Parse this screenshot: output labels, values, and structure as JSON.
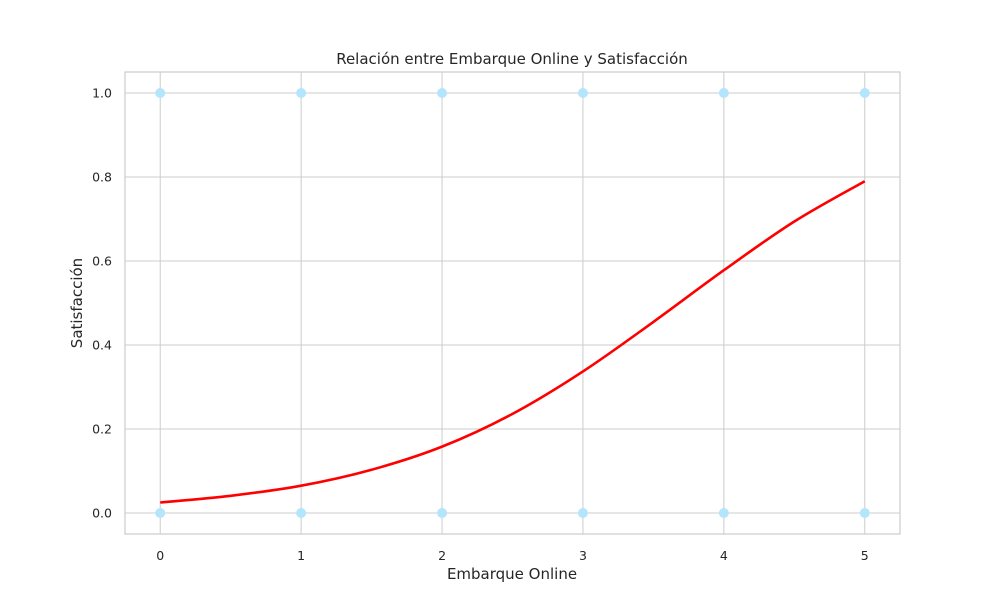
{
  "chart_data": {
    "type": "scatter",
    "title": "Relación entre Embarque Online y Satisfacción",
    "xlabel": "Embarque Online",
    "ylabel": "Satisfacción",
    "xlim": [
      -0.25,
      5.25
    ],
    "ylim": [
      -0.05,
      1.05
    ],
    "xticks": [
      "0",
      "1",
      "2",
      "3",
      "4",
      "5"
    ],
    "yticks": [
      "0.0",
      "0.2",
      "0.4",
      "0.6",
      "0.8",
      "1.0"
    ],
    "grid": true,
    "points": [
      {
        "x": 0,
        "y": 1
      },
      {
        "x": 1,
        "y": 1
      },
      {
        "x": 2,
        "y": 1
      },
      {
        "x": 3,
        "y": 1
      },
      {
        "x": 4,
        "y": 1
      },
      {
        "x": 5,
        "y": 1
      },
      {
        "x": 0,
        "y": 0
      },
      {
        "x": 1,
        "y": 0
      },
      {
        "x": 2,
        "y": 0
      },
      {
        "x": 3,
        "y": 0
      },
      {
        "x": 4,
        "y": 0
      },
      {
        "x": 5,
        "y": 0
      }
    ],
    "curve": {
      "x": [
        0,
        0.5,
        1,
        1.5,
        2,
        2.5,
        3,
        3.5,
        4,
        4.5,
        5
      ],
      "y": [
        0.025,
        0.041,
        0.065,
        0.103,
        0.158,
        0.236,
        0.337,
        0.455,
        0.578,
        0.694,
        0.79
      ]
    },
    "colors": {
      "points": "#b3e5fc",
      "curve": "#ff0000",
      "grid": "#cccccc",
      "frame": "#cccccc"
    }
  }
}
